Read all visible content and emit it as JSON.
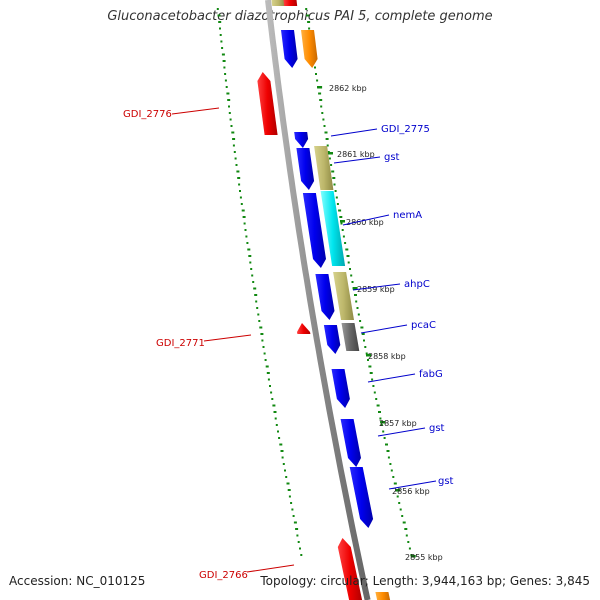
{
  "title": "Gluconacetobacter diazotrophicus PAI 5, complete genome",
  "footer": {
    "accession": "Accession: NC_010125",
    "stats": "Topology: circular; Length: 3,944,163 bp; Genes: 3,845"
  },
  "scale_labels": [
    "2862 kbp",
    "2861 kbp",
    "2860 kbp",
    "2859 kbp",
    "2858 kbp",
    "2857 kbp",
    "2856 kbp",
    "2855 kbp"
  ],
  "gene_labels": {
    "forward": [
      "GDI_2775",
      "gst",
      "nemA",
      "ahpC",
      "pcaC",
      "fabG",
      "gst",
      "gst"
    ],
    "reverse": [
      "GDI_2776",
      "GDI_2771",
      "GDI_2766"
    ]
  },
  "colors": {
    "forward_cds": "#0000ee",
    "reverse_cds": "#ee0000",
    "khaki": "#bdb76b",
    "cyan": "#00e5ee",
    "orange": "#ff8c00",
    "gray_feature": "#666666",
    "backbone": "#888888",
    "tick": "#118811",
    "forward_label": "#0000cc",
    "reverse_label": "#cc0000"
  }
}
